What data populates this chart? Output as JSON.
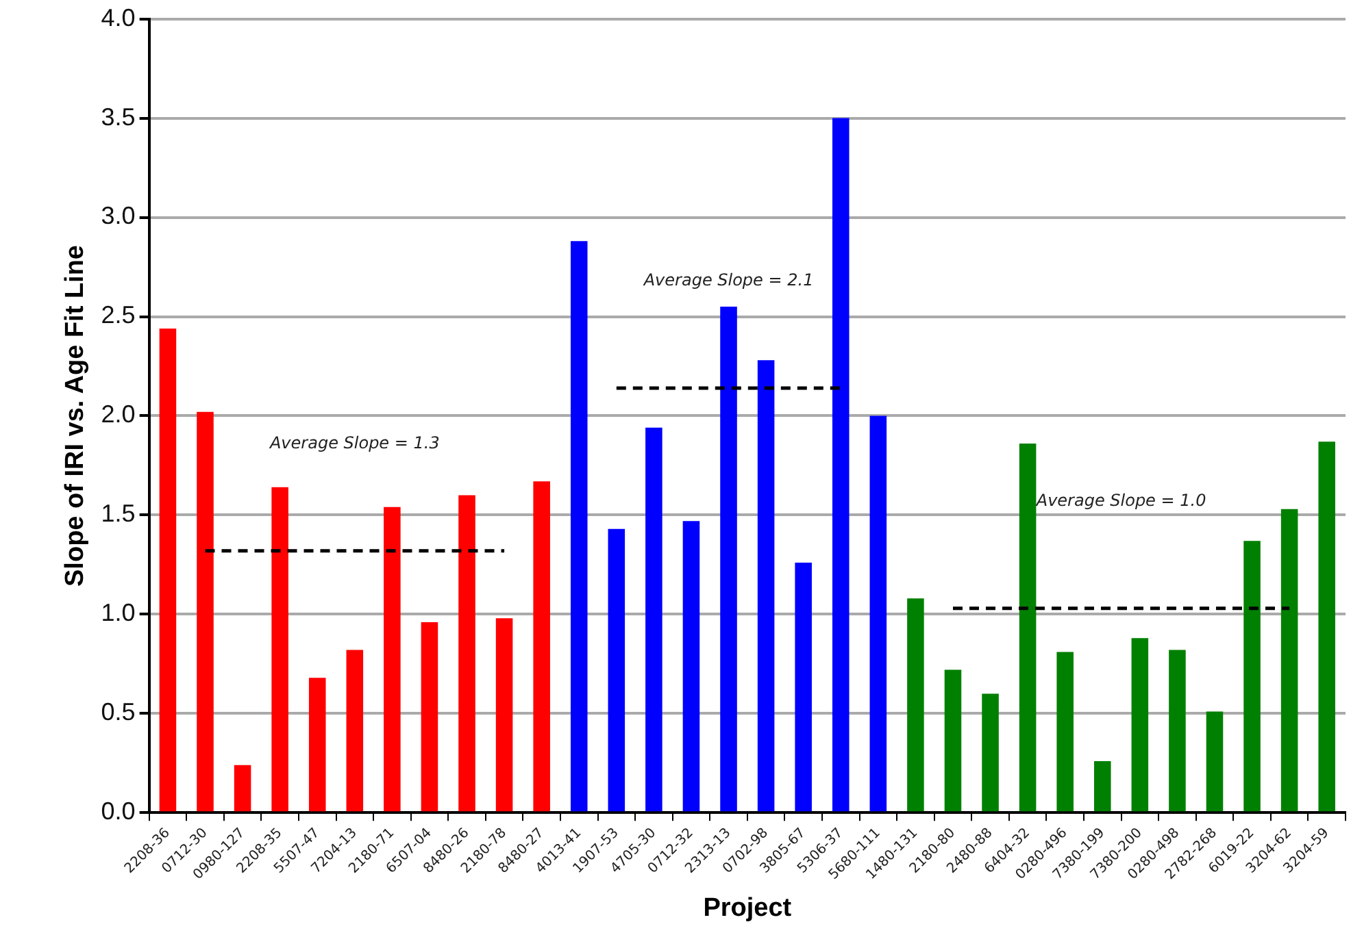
{
  "chart_data": {
    "type": "bar",
    "xlabel": "Project",
    "ylabel": "Slope of IRI vs. Age Fit Line",
    "categories": [
      "2208-36",
      "0712-30",
      "0980-127",
      "2208-35",
      "5507-47",
      "7204-13",
      "2180-71",
      "6507-04",
      "8480-26",
      "2180-78",
      "8480-27",
      "4013-41",
      "1907-53",
      "4705-30",
      "0712-32",
      "2313-13",
      "0702-98",
      "3805-67",
      "5306-37",
      "5680-111",
      "1480-131",
      "2180-80",
      "2480-88",
      "6404-32",
      "0280-496",
      "7380-199",
      "7380-200",
      "0280-498",
      "2782-268",
      "6019-22",
      "3204-62",
      "3204-59"
    ],
    "series": [
      {
        "values": [
          2.44,
          2.02,
          0.24,
          1.64,
          0.68,
          0.82,
          1.54,
          0.96,
          1.6,
          0.98,
          1.67,
          2.88,
          1.43,
          1.94,
          1.47,
          2.55,
          2.28,
          1.26,
          3.5,
          2.0,
          1.08,
          0.72,
          0.6,
          1.86,
          0.81,
          0.26,
          0.88,
          0.82,
          0.51,
          1.37,
          1.53,
          1.87
        ],
        "colors": [
          "#ff0000",
          "#ff0000",
          "#ff0000",
          "#ff0000",
          "#ff0000",
          "#ff0000",
          "#ff0000",
          "#ff0000",
          "#ff0000",
          "#ff0000",
          "#ff0000",
          "#0000ff",
          "#0000ff",
          "#0000ff",
          "#0000ff",
          "#0000ff",
          "#0000ff",
          "#0000ff",
          "#0000ff",
          "#0000ff",
          "#008000",
          "#008000",
          "#008000",
          "#008000",
          "#008000",
          "#008000",
          "#008000",
          "#008000",
          "#008000",
          "#008000",
          "#008000",
          "#008000"
        ]
      },
      {
        "type": "line",
        "color": "#000000",
        "line_style": "dashed",
        "x": [
          "0712-30",
          "2180-78"
        ],
        "values": [
          1.32,
          1.32
        ]
      },
      {
        "type": "line",
        "color": "#000000",
        "line_style": "dashed",
        "x": [
          "1907-53",
          "5306-37"
        ],
        "values": [
          2.14,
          2.14
        ]
      },
      {
        "type": "line",
        "color": "#000000",
        "line_style": "dashed",
        "x": [
          "2180-80",
          "3204-62"
        ],
        "values": [
          1.03,
          1.03
        ]
      }
    ],
    "ylim": [
      0,
      4
    ],
    "yticks": [
      {
        "value": 0,
        "label": "0.0"
      },
      {
        "value": 0.5,
        "label": "0.5"
      },
      {
        "value": 1,
        "label": "1.0"
      },
      {
        "value": 1.5,
        "label": "1.5"
      },
      {
        "value": 2,
        "label": "2.0"
      },
      {
        "value": 2.5,
        "label": "2.5"
      },
      {
        "value": 3,
        "label": "3.0"
      },
      {
        "value": 3.5,
        "label": "3.5"
      },
      {
        "value": 4,
        "label": "4.0"
      }
    ],
    "grid": "y",
    "legend": false,
    "marker": "none",
    "annotations": [
      "Average Slope = 1.3",
      "Average Slope = 2.1",
      "Average Slope = 1.0"
    ]
  }
}
